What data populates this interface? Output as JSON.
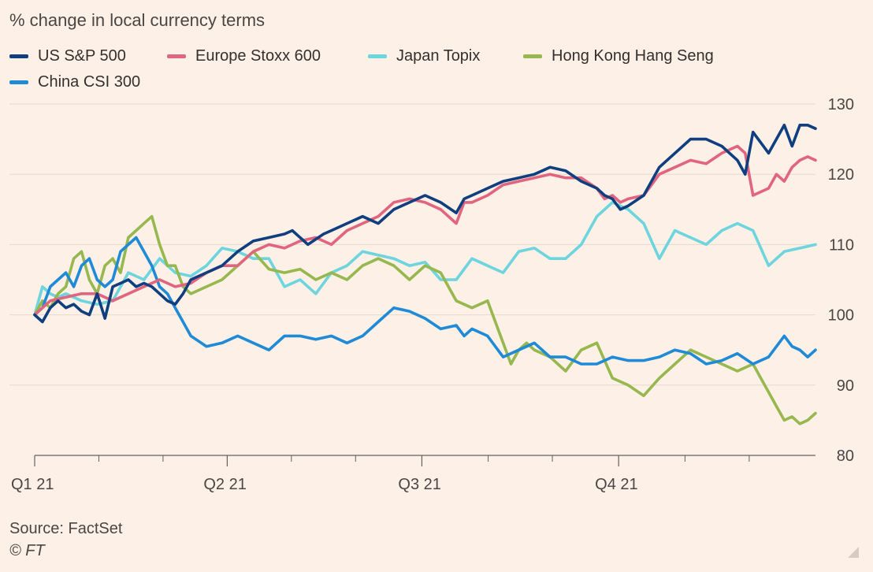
{
  "subtitle": "% change in local currency terms",
  "source": "Source: FactSet",
  "credit": "© FT",
  "chart_data": {
    "type": "line",
    "title": "",
    "ylabel": "% change in local currency terms",
    "xlabel": "",
    "ylim": [
      80,
      130
    ],
    "yticks": [
      80,
      90,
      100,
      110,
      120,
      130
    ],
    "xlim": [
      0,
      1
    ],
    "xticks": [
      {
        "label": "Q1 21",
        "pos": 0.0
      },
      {
        "label": "Q2 21",
        "pos": 0.2466
      },
      {
        "label": "Q3 21",
        "pos": 0.4959
      },
      {
        "label": "Q4 21",
        "pos": 0.7479
      }
    ],
    "minor_ticks": [
      0.0822,
      0.1644,
      0.3288,
      0.411,
      0.5808,
      0.663,
      0.8329,
      0.9151
    ],
    "grid": true,
    "legend_position": "top-left",
    "series": [
      {
        "name": "US S&P 500",
        "color": "#0f3f7f",
        "x": [
          0,
          0.01,
          0.02,
          0.03,
          0.04,
          0.05,
          0.06,
          0.07,
          0.08,
          0.09,
          0.1,
          0.11,
          0.12,
          0.13,
          0.14,
          0.15,
          0.16,
          0.17,
          0.18,
          0.19,
          0.2,
          0.22,
          0.24,
          0.25,
          0.26,
          0.28,
          0.3,
          0.32,
          0.33,
          0.35,
          0.37,
          0.38,
          0.4,
          0.42,
          0.44,
          0.46,
          0.48,
          0.5,
          0.52,
          0.54,
          0.55,
          0.56,
          0.58,
          0.6,
          0.62,
          0.64,
          0.66,
          0.68,
          0.7,
          0.72,
          0.73,
          0.74,
          0.75,
          0.76,
          0.78,
          0.8,
          0.82,
          0.84,
          0.86,
          0.88,
          0.9,
          0.91,
          0.92,
          0.94,
          0.95,
          0.96,
          0.97,
          0.98,
          0.99,
          1
        ],
        "values": [
          100,
          99,
          101,
          102,
          101,
          101.5,
          100.5,
          100,
          103,
          99.5,
          104,
          104.5,
          105,
          104,
          104.5,
          104,
          103,
          102,
          101.5,
          103,
          105,
          106,
          107,
          108,
          109,
          110.5,
          111,
          111.5,
          112,
          110,
          111.5,
          112,
          113,
          114,
          113,
          115,
          116,
          117,
          116,
          114.5,
          116.5,
          117,
          118,
          119,
          119.5,
          120,
          121,
          120.5,
          119,
          118,
          117,
          116.5,
          115,
          115.5,
          117,
          121,
          123,
          125,
          125,
          124,
          122,
          120,
          126,
          123,
          125,
          127,
          124,
          127,
          127,
          126.5
        ]
      },
      {
        "name": "Europe Stoxx 600",
        "color": "#e2657f",
        "x": [
          0,
          0.02,
          0.04,
          0.06,
          0.08,
          0.1,
          0.12,
          0.14,
          0.16,
          0.18,
          0.2,
          0.22,
          0.24,
          0.26,
          0.28,
          0.3,
          0.32,
          0.34,
          0.36,
          0.38,
          0.4,
          0.42,
          0.44,
          0.46,
          0.48,
          0.5,
          0.52,
          0.54,
          0.55,
          0.56,
          0.58,
          0.6,
          0.62,
          0.64,
          0.66,
          0.68,
          0.7,
          0.72,
          0.73,
          0.74,
          0.75,
          0.76,
          0.78,
          0.8,
          0.82,
          0.84,
          0.86,
          0.88,
          0.9,
          0.91,
          0.92,
          0.94,
          0.95,
          0.96,
          0.97,
          0.98,
          0.99,
          1
        ],
        "values": [
          100,
          102,
          102.5,
          103,
          103,
          102,
          103,
          104,
          105,
          104,
          104.5,
          106,
          107,
          107,
          109,
          110,
          109.5,
          110.5,
          111,
          110,
          112,
          113,
          114,
          116,
          116.5,
          116,
          115,
          113,
          116,
          116,
          117,
          118.5,
          119,
          119.5,
          120,
          119.5,
          119.5,
          118,
          116.5,
          117,
          116,
          116.5,
          117,
          120,
          121,
          122,
          121.5,
          123,
          124,
          123,
          117,
          118,
          120,
          119,
          121,
          122,
          122.5,
          122
        ]
      },
      {
        "name": "Japan Topix",
        "color": "#6ed4de",
        "x": [
          0,
          0.01,
          0.02,
          0.03,
          0.04,
          0.06,
          0.08,
          0.1,
          0.12,
          0.14,
          0.16,
          0.18,
          0.2,
          0.22,
          0.24,
          0.26,
          0.28,
          0.3,
          0.32,
          0.34,
          0.36,
          0.38,
          0.4,
          0.42,
          0.44,
          0.46,
          0.48,
          0.5,
          0.52,
          0.54,
          0.56,
          0.58,
          0.6,
          0.62,
          0.64,
          0.66,
          0.68,
          0.7,
          0.72,
          0.74,
          0.76,
          0.78,
          0.8,
          0.82,
          0.84,
          0.86,
          0.88,
          0.9,
          0.92,
          0.94,
          0.96,
          0.98,
          1
        ],
        "values": [
          100,
          104,
          103,
          102.5,
          103,
          102,
          101.5,
          102,
          106,
          105,
          108,
          106,
          105.5,
          107,
          109.5,
          109,
          108,
          108,
          104,
          105,
          103,
          106,
          107,
          109,
          108.5,
          108,
          107,
          107.5,
          105,
          105,
          108,
          107,
          106,
          109,
          109.5,
          108,
          108,
          110,
          114,
          116,
          115,
          113,
          108,
          112,
          111,
          110,
          112,
          113,
          112,
          107,
          109,
          109.5,
          110
        ]
      },
      {
        "name": "Hong Kong Hang Seng",
        "color": "#96b84e",
        "x": [
          0,
          0.01,
          0.02,
          0.03,
          0.04,
          0.05,
          0.06,
          0.07,
          0.08,
          0.09,
          0.1,
          0.11,
          0.12,
          0.13,
          0.14,
          0.15,
          0.16,
          0.17,
          0.18,
          0.19,
          0.2,
          0.22,
          0.24,
          0.26,
          0.28,
          0.3,
          0.32,
          0.34,
          0.36,
          0.38,
          0.4,
          0.42,
          0.44,
          0.46,
          0.48,
          0.5,
          0.52,
          0.54,
          0.56,
          0.58,
          0.6,
          0.61,
          0.62,
          0.63,
          0.64,
          0.66,
          0.68,
          0.7,
          0.72,
          0.74,
          0.76,
          0.78,
          0.8,
          0.82,
          0.84,
          0.86,
          0.88,
          0.9,
          0.92,
          0.94,
          0.95,
          0.96,
          0.97,
          0.98,
          0.99,
          1
        ],
        "values": [
          100,
          102,
          101,
          103,
          104,
          108,
          109,
          105,
          103,
          107,
          108,
          106,
          111,
          112,
          113,
          114,
          110,
          107,
          107,
          104,
          103,
          104,
          105,
          107,
          109,
          106.5,
          106,
          106.5,
          105,
          106,
          105,
          107,
          108,
          107,
          105,
          107,
          106,
          102,
          101,
          102,
          96,
          93,
          95,
          96,
          95,
          94,
          92,
          95,
          96,
          91,
          90,
          88.5,
          91,
          93,
          95,
          94,
          93,
          92,
          93,
          89,
          87,
          85,
          85.5,
          84.5,
          85,
          86
        ]
      },
      {
        "name": "China CSI 300",
        "color": "#1f8ad6",
        "x": [
          0,
          0.01,
          0.02,
          0.03,
          0.04,
          0.05,
          0.06,
          0.07,
          0.08,
          0.09,
          0.1,
          0.11,
          0.12,
          0.13,
          0.14,
          0.15,
          0.16,
          0.17,
          0.18,
          0.19,
          0.2,
          0.22,
          0.24,
          0.26,
          0.28,
          0.3,
          0.32,
          0.34,
          0.36,
          0.38,
          0.4,
          0.42,
          0.44,
          0.46,
          0.48,
          0.5,
          0.52,
          0.54,
          0.55,
          0.56,
          0.58,
          0.6,
          0.62,
          0.64,
          0.66,
          0.68,
          0.7,
          0.72,
          0.74,
          0.76,
          0.78,
          0.8,
          0.82,
          0.84,
          0.86,
          0.88,
          0.9,
          0.92,
          0.94,
          0.96,
          0.97,
          0.98,
          0.99,
          1
        ],
        "values": [
          100,
          101,
          104,
          105,
          106,
          104,
          107,
          108,
          105,
          104,
          105,
          109,
          110,
          111,
          109,
          107,
          104,
          103,
          101,
          99,
          97,
          95.5,
          96,
          97,
          96,
          95,
          97,
          97,
          96.5,
          97,
          96,
          97,
          99,
          101,
          100.5,
          99.5,
          98,
          98.5,
          97,
          98,
          97,
          94,
          95,
          96,
          94,
          94,
          93,
          93,
          94,
          93.5,
          93.5,
          94,
          95,
          94.5,
          93,
          93.5,
          94.5,
          93,
          94,
          97,
          95.5,
          95,
          94,
          95
        ]
      }
    ]
  }
}
